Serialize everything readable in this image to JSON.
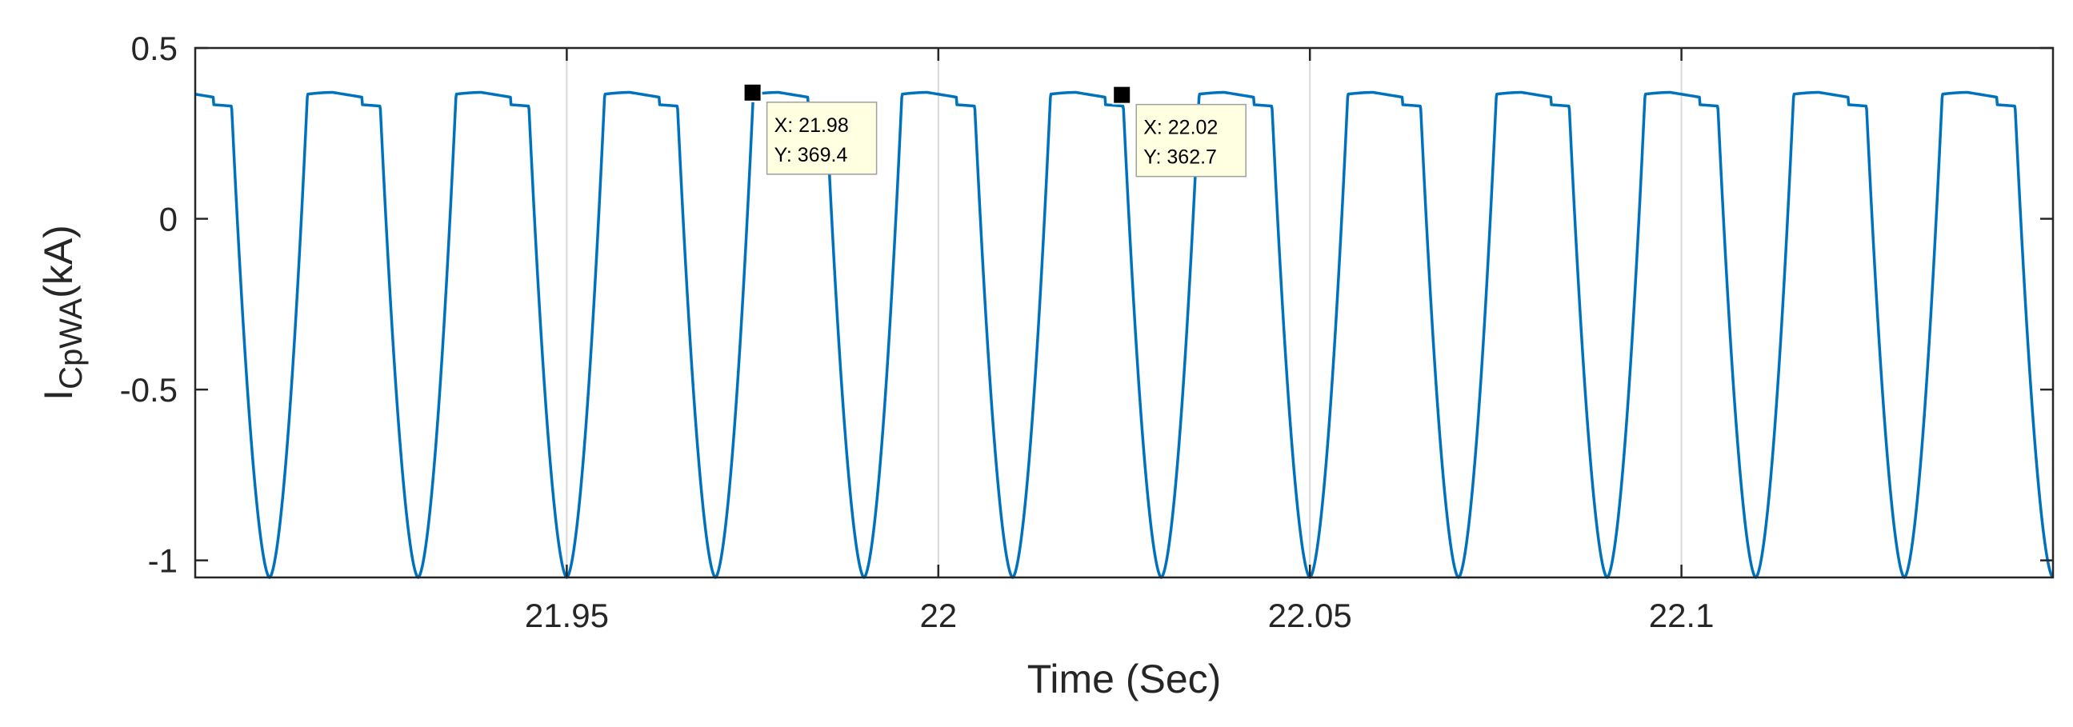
{
  "chart_data": {
    "type": "line",
    "xlabel": "Time (Sec)",
    "ylabel": {
      "base": "I",
      "subscript": "CpWA",
      "suffix": "(kA)"
    },
    "xlim": [
      21.9,
      22.15
    ],
    "ylim": [
      -1.05,
      0.5
    ],
    "x_ticks": [
      21.95,
      22,
      22.05,
      22.1
    ],
    "x_tick_labels": [
      "21.95",
      "22",
      "22.05",
      "22.1"
    ],
    "y_ticks": [
      0.5,
      0,
      -0.5,
      -1
    ],
    "y_tick_labels": [
      "0.5",
      "0",
      "-0.5",
      "-1"
    ],
    "grid": "x-only",
    "series": [
      {
        "color": "#0072BD",
        "period": 0.02,
        "first_trough": 21.91,
        "trough": -1.05,
        "plateau_start": 0.365,
        "plateau_peak": 0.37,
        "plateau_end": 0.33
      }
    ],
    "datatips": [
      {
        "x_label": "X: 21.98",
        "y_label": "Y: 369.4",
        "x": 21.975,
        "y": 0.3694
      },
      {
        "x_label": "X: 22.02",
        "y_label": "Y: 362.7",
        "x": 22.0247,
        "y": 0.3627
      }
    ]
  }
}
